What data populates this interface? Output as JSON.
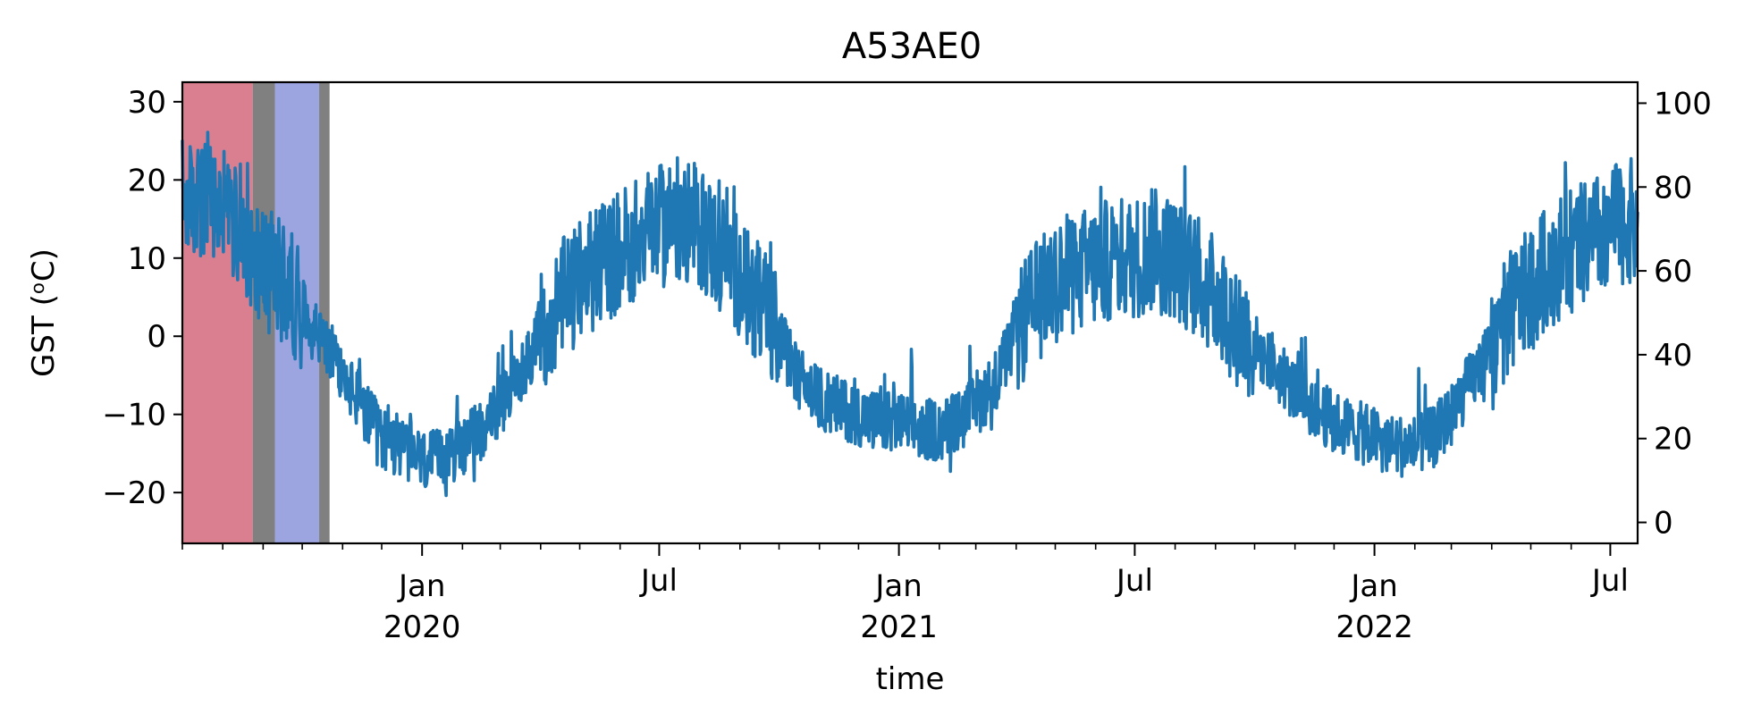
{
  "chart_data": {
    "type": "line",
    "title": "A53AE0",
    "xlabel": "time",
    "ylabel": "GST (ᵒC)",
    "xlim": [
      "2019-07-01",
      "2022-07-22"
    ],
    "ylim": [
      -26.5,
      32.5
    ],
    "y2lim": [
      -5,
      105
    ],
    "y_ticks": [
      {
        "value": -20,
        "label": "−20"
      },
      {
        "value": -10,
        "label": "−10"
      },
      {
        "value": 0,
        "label": "0"
      },
      {
        "value": 10,
        "label": "10"
      },
      {
        "value": 20,
        "label": "20"
      },
      {
        "value": 30,
        "label": "30"
      }
    ],
    "y2_ticks": [
      {
        "value": 0,
        "label": "0"
      },
      {
        "value": 20,
        "label": "20"
      },
      {
        "value": 40,
        "label": "40"
      },
      {
        "value": 60,
        "label": "60"
      },
      {
        "value": 80,
        "label": "80"
      },
      {
        "value": 100,
        "label": "100"
      }
    ],
    "x_major_ticks": [
      {
        "date": "2020-01-01",
        "label": "Jan",
        "sublabel": "2020"
      },
      {
        "date": "2020-07-01",
        "label": "Jul",
        "sublabel": ""
      },
      {
        "date": "2021-01-01",
        "label": "Jan",
        "sublabel": "2021"
      },
      {
        "date": "2021-07-01",
        "label": "Jul",
        "sublabel": ""
      },
      {
        "date": "2022-01-01",
        "label": "Jan",
        "sublabel": "2022"
      },
      {
        "date": "2022-07-01",
        "label": "Jul",
        "sublabel": ""
      }
    ],
    "x_minor_ticks": [
      "2019-07-01",
      "2019-08-01",
      "2019-09-01",
      "2019-10-01",
      "2019-11-01",
      "2019-12-01",
      "2020-02-01",
      "2020-03-01",
      "2020-04-01",
      "2020-05-01",
      "2020-06-01",
      "2020-08-01",
      "2020-09-01",
      "2020-10-01",
      "2020-11-01",
      "2020-12-01",
      "2021-02-01",
      "2021-03-01",
      "2021-04-01",
      "2021-05-01",
      "2021-06-01",
      "2021-08-01",
      "2021-09-01",
      "2021-10-01",
      "2021-11-01",
      "2021-12-01",
      "2022-02-01",
      "2022-03-01",
      "2022-04-01",
      "2022-05-01",
      "2022-06-01"
    ],
    "spans": [
      {
        "start": "2019-07-01",
        "end": "2019-08-24",
        "color": "#d97f8f"
      },
      {
        "start": "2019-08-24",
        "end": "2019-09-10",
        "color": "#808080"
      },
      {
        "start": "2019-09-10",
        "end": "2019-10-14",
        "color": "#9da5e0"
      },
      {
        "start": "2019-10-14",
        "end": "2019-10-22",
        "color": "#808080"
      }
    ],
    "series": [
      {
        "color": "#1f77b4",
        "points": [
          [
            "2019-07-01",
            18
          ],
          [
            "2019-07-15",
            17
          ],
          [
            "2019-08-01",
            16
          ],
          [
            "2019-08-15",
            14
          ],
          [
            "2019-09-01",
            9
          ],
          [
            "2019-09-15",
            7
          ],
          [
            "2019-10-01",
            4
          ],
          [
            "2019-10-15",
            0
          ],
          [
            "2019-11-01",
            -5
          ],
          [
            "2019-11-15",
            -9
          ],
          [
            "2019-12-01",
            -13
          ],
          [
            "2019-12-15",
            -14
          ],
          [
            "2020-01-01",
            -16
          ],
          [
            "2020-01-15",
            -16
          ],
          [
            "2020-02-01",
            -14
          ],
          [
            "2020-02-15",
            -12
          ],
          [
            "2020-03-01",
            -9
          ],
          [
            "2020-03-15",
            -5
          ],
          [
            "2020-04-01",
            0
          ],
          [
            "2020-04-15",
            4
          ],
          [
            "2020-05-01",
            7
          ],
          [
            "2020-05-15",
            9
          ],
          [
            "2020-06-01",
            11
          ],
          [
            "2020-06-15",
            13
          ],
          [
            "2020-07-01",
            14
          ],
          [
            "2020-07-15",
            15
          ],
          [
            "2020-08-01",
            14
          ],
          [
            "2020-08-15",
            11
          ],
          [
            "2020-09-01",
            8
          ],
          [
            "2020-09-15",
            4
          ],
          [
            "2020-10-01",
            0
          ],
          [
            "2020-10-15",
            -5
          ],
          [
            "2020-11-01",
            -8
          ],
          [
            "2020-11-15",
            -9
          ],
          [
            "2020-12-01",
            -10
          ],
          [
            "2020-12-15",
            -11
          ],
          [
            "2021-01-01",
            -11
          ],
          [
            "2021-01-15",
            -12
          ],
          [
            "2021-02-01",
            -12
          ],
          [
            "2021-02-15",
            -11
          ],
          [
            "2021-03-01",
            -9
          ],
          [
            "2021-03-15",
            -6
          ],
          [
            "2021-04-01",
            0
          ],
          [
            "2021-04-15",
            4
          ],
          [
            "2021-05-01",
            7
          ],
          [
            "2021-05-15",
            8
          ],
          [
            "2021-06-01",
            9
          ],
          [
            "2021-06-15",
            10
          ],
          [
            "2021-07-01",
            10
          ],
          [
            "2021-07-15",
            11
          ],
          [
            "2021-08-01",
            10
          ],
          [
            "2021-08-15",
            8
          ],
          [
            "2021-09-01",
            5
          ],
          [
            "2021-09-15",
            2
          ],
          [
            "2021-10-01",
            -1
          ],
          [
            "2021-10-15",
            -4
          ],
          [
            "2021-11-01",
            -7
          ],
          [
            "2021-11-15",
            -9
          ],
          [
            "2021-12-01",
            -11
          ],
          [
            "2021-12-15",
            -12
          ],
          [
            "2022-01-01",
            -13
          ],
          [
            "2022-01-15",
            -14
          ],
          [
            "2022-02-01",
            -14
          ],
          [
            "2022-02-15",
            -13
          ],
          [
            "2022-03-01",
            -10
          ],
          [
            "2022-03-15",
            -6
          ],
          [
            "2022-04-01",
            -2
          ],
          [
            "2022-04-15",
            3
          ],
          [
            "2022-05-01",
            6
          ],
          [
            "2022-05-15",
            9
          ],
          [
            "2022-06-01",
            11
          ],
          [
            "2022-06-15",
            12
          ],
          [
            "2022-07-01",
            14
          ],
          [
            "2022-07-22",
            15
          ]
        ]
      }
    ]
  }
}
